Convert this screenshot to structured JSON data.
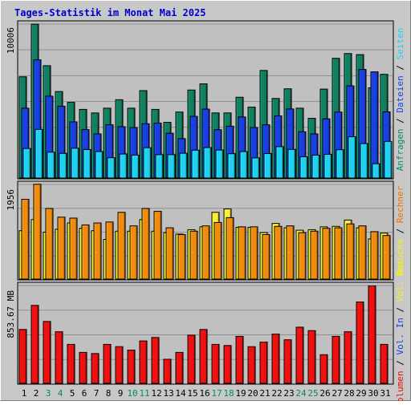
{
  "chart_data": [
    {
      "type": "bar",
      "title": "Tages-Statistik im Monat Mai 2025",
      "panel": "requests",
      "ymax_label": "10006",
      "ylim": [
        0,
        10006
      ],
      "right_labels": [
        {
          "text": "Anfragen",
          "color": "#0b8a5c"
        },
        {
          "text": " / ",
          "color": "#000000"
        },
        {
          "text": "Dateien",
          "color": "#1a3fe0"
        },
        {
          "text": " / ",
          "color": "#000000"
        },
        {
          "text": "Seiten",
          "color": "#20d0f0"
        }
      ],
      "categories": [
        "1",
        "2",
        "3",
        "4",
        "5",
        "6",
        "7",
        "8",
        "9",
        "10",
        "11",
        "12",
        "13",
        "14",
        "15",
        "16",
        "17",
        "18",
        "19",
        "20",
        "21",
        "22",
        "23",
        "24",
        "25",
        "26",
        "27",
        "28",
        "29",
        "30",
        "31"
      ],
      "category_colors": [
        "#000000",
        "#000000",
        "#0b8a5c",
        "#0b8a5c",
        "#000000",
        "#000000",
        "#000000",
        "#000000",
        "#000000",
        "#0b8a5c",
        "#0b8a5c",
        "#000000",
        "#000000",
        "#000000",
        "#000000",
        "#000000",
        "#0b8a5c",
        "#0b8a5c",
        "#000000",
        "#000000",
        "#000000",
        "#000000",
        "#000000",
        "#0b8a5c",
        "#0b8a5c",
        "#000000",
        "#000000",
        "#000000",
        "#000000",
        "#000000",
        "#000000"
      ],
      "series": [
        {
          "name": "Anfragen",
          "color": "#128060",
          "values": [
            6580,
            10000,
            7300,
            5620,
            4920,
            4460,
            4230,
            4540,
            5090,
            4540,
            5680,
            4460,
            3620,
            4290,
            5720,
            6120,
            4230,
            4230,
            5250,
            4610,
            6990,
            5170,
            5800,
            4540,
            3880,
            5780,
            7780,
            8090,
            8020,
            5860,
            6740
          ]
        },
        {
          "name": "Dateien",
          "color": "#1a3fe0",
          "values": [
            4540,
            7680,
            5320,
            4670,
            3650,
            3150,
            2870,
            3460,
            3340,
            3280,
            3530,
            3570,
            2910,
            2560,
            4010,
            4480,
            3140,
            3370,
            3970,
            3280,
            3460,
            4040,
            4490,
            3010,
            2870,
            3850,
            4290,
            5990,
            7060,
            6900,
            4300
          ]
        },
        {
          "name": "Seiten",
          "color": "#20d0f0",
          "values": [
            1920,
            3160,
            1680,
            1600,
            1940,
            1850,
            1720,
            1320,
            1560,
            1490,
            1970,
            1520,
            1520,
            1610,
            1810,
            1980,
            1820,
            1580,
            1720,
            1310,
            1590,
            2040,
            1860,
            1380,
            1490,
            1540,
            1840,
            2680,
            2240,
            928,
            2380
          ]
        }
      ]
    },
    {
      "type": "bar",
      "panel": "visits",
      "ymax_label": "1956",
      "ylim": [
        0,
        1956
      ],
      "right_labels": [
        {
          "text": "Besuche",
          "color": "#f0f020"
        },
        {
          "text": " / ",
          "color": "#000000"
        },
        {
          "text": "Rechner",
          "color": "#f07000"
        }
      ],
      "categories": [
        "1",
        "2",
        "3",
        "4",
        "5",
        "6",
        "7",
        "8",
        "9",
        "10",
        "11",
        "12",
        "13",
        "14",
        "15",
        "16",
        "17",
        "18",
        "19",
        "20",
        "21",
        "22",
        "23",
        "24",
        "25",
        "26",
        "27",
        "28",
        "29",
        "30",
        "31"
      ],
      "series": [
        {
          "name": "Besuche",
          "color": "#f8f030",
          "values": [
            1000,
            1230,
            970,
            1030,
            1160,
            1050,
            1000,
            820,
            990,
            990,
            1230,
            990,
            960,
            930,
            1020,
            1080,
            1380,
            1450,
            1070,
            1070,
            960,
            1150,
            1060,
            1010,
            1020,
            1080,
            1090,
            1220,
            1060,
            830,
            950
          ]
        },
        {
          "name": "Rechner",
          "color": "#f28a10",
          "values": [
            1650,
            1960,
            1460,
            1280,
            1260,
            1120,
            1160,
            1180,
            1380,
            1100,
            1460,
            1400,
            1060,
            920,
            990,
            1100,
            1170,
            1270,
            1080,
            1080,
            920,
            1090,
            1100,
            960,
            990,
            1050,
            1060,
            1140,
            1100,
            980,
            900
          ]
        }
      ]
    },
    {
      "type": "bar",
      "panel": "volume",
      "ymax_label": "853.67 MB",
      "ylim": [
        0,
        853.67
      ],
      "right_labels": [
        {
          "text": "Volumen",
          "color": "#e01010"
        },
        {
          "text": " / ",
          "color": "#000000"
        },
        {
          "text": "Vol. In",
          "color": "#1a3fe0"
        },
        {
          "text": " / ",
          "color": "#000000"
        },
        {
          "text": "Vol. Out",
          "color": "#f0f020"
        }
      ],
      "categories": [
        "1",
        "2",
        "3",
        "4",
        "5",
        "6",
        "7",
        "8",
        "9",
        "10",
        "11",
        "12",
        "13",
        "14",
        "15",
        "16",
        "17",
        "18",
        "19",
        "20",
        "21",
        "22",
        "23",
        "24",
        "25",
        "26",
        "27",
        "28",
        "29",
        "30",
        "31"
      ],
      "series": [
        {
          "name": "Volumen",
          "color": "#f01010",
          "values": [
            470,
            680,
            540,
            450,
            340,
            270,
            260,
            340,
            320,
            290,
            370,
            400,
            210,
            270,
            420,
            470,
            340,
            330,
            410,
            320,
            360,
            430,
            380,
            490,
            460,
            250,
            410,
            450,
            710,
            850,
            340
          ]
        }
      ]
    }
  ]
}
